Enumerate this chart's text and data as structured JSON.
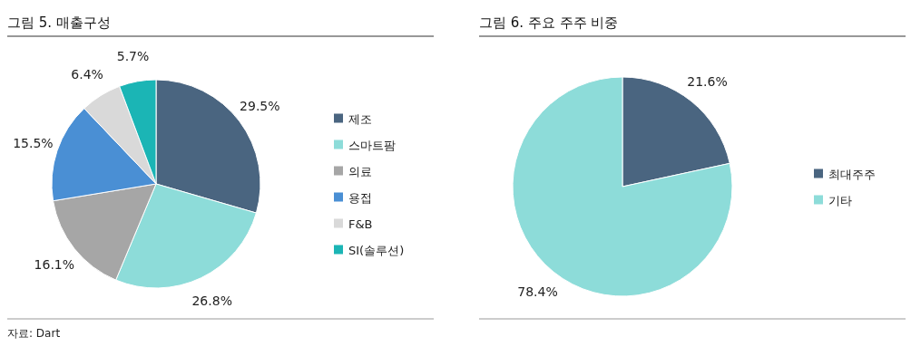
{
  "chart_data": [
    {
      "type": "pie",
      "title": "그림 5. 매출구성",
      "categories": [
        "제조",
        "스마트팜",
        "의료",
        "용접",
        "F&B",
        "SI(솔루션)"
      ],
      "values": [
        29.5,
        26.8,
        16.1,
        15.5,
        6.4,
        5.7
      ],
      "colors": [
        "#4a6580",
        "#8ddcd9",
        "#a6a6a6",
        "#4a8fd4",
        "#d9d9d9",
        "#1bb5b5"
      ],
      "value_labels": [
        "29.5%",
        "26.8%",
        "16.1%",
        "15.5%",
        "6.4%",
        "5.7%"
      ],
      "legend": "right",
      "annotations": [
        "자료: Dart"
      ]
    },
    {
      "type": "pie",
      "title": "그림 6. 주요 주주 비중",
      "categories": [
        "최대주주",
        "기타"
      ],
      "values": [
        21.6,
        78.4
      ],
      "colors": [
        "#4a6580",
        "#8ddcd9"
      ],
      "value_labels": [
        "21.6%",
        "78.4%"
      ],
      "legend": "right"
    }
  ]
}
